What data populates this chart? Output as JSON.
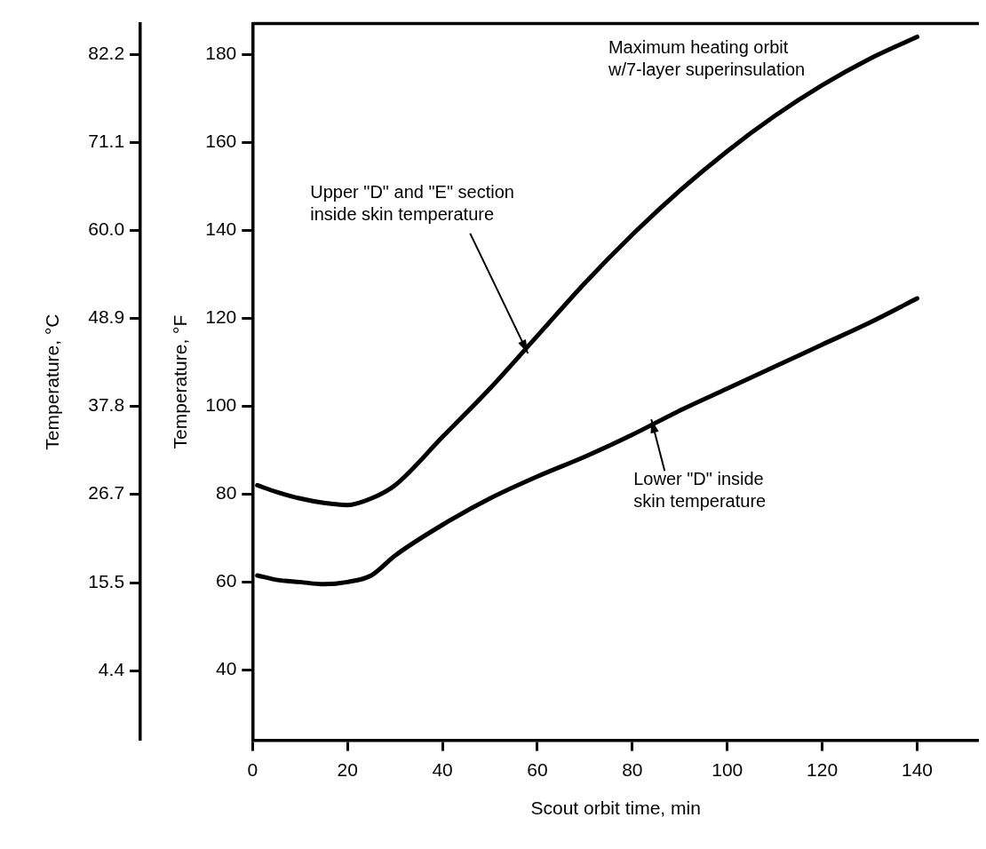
{
  "chart_data": {
    "type": "line",
    "xlabel": "Scout orbit time, min",
    "ylabel": "Temperature, °F",
    "y2label": "Temperature, °C",
    "xlim": [
      0,
      153
    ],
    "xticks": [
      0,
      20,
      40,
      60,
      80,
      100,
      120,
      140
    ],
    "ylim": [
      24,
      187
    ],
    "yticks": [
      40,
      60,
      80,
      100,
      120,
      140,
      160,
      180
    ],
    "y2lim": [
      -4.4,
      86.1
    ],
    "y2ticks": [
      4.4,
      15.5,
      26.7,
      37.8,
      48.9,
      {
        "value": 60,
        "label": "60.0"
      },
      71.1,
      82.2
    ],
    "series": [
      {
        "color": "#000000",
        "x": [
          1,
          5,
          10,
          15,
          20,
          25,
          30,
          40,
          50,
          60,
          70,
          80,
          90,
          100,
          110,
          120,
          130,
          140
        ],
        "values": [
          82,
          80.5,
          79,
          78,
          77.5,
          79,
          82,
          93,
          104,
          116,
          128,
          139,
          149,
          158,
          166,
          173,
          179,
          184
        ]
      },
      {
        "color": "#000000",
        "x": [
          1,
          5,
          10,
          15,
          20,
          25,
          30,
          40,
          50,
          60,
          70,
          80,
          90,
          100,
          110,
          120,
          130,
          140
        ],
        "values": [
          61.5,
          60.5,
          60,
          59.5,
          60,
          61.5,
          66,
          73,
          79,
          84,
          88.5,
          93.5,
          99,
          104,
          109,
          114,
          119,
          124.5
        ]
      }
    ],
    "annotations": [
      "Maximum heating orbit\nw/7-layer superinsulation",
      {
        "text": "Upper \"D\" and \"E\" section\ninside skin temperature",
        "x": 58,
        "y": 112
      },
      {
        "text": "Lower \"D\" inside\nskin temperature",
        "x": 84,
        "y": 97
      }
    ]
  }
}
